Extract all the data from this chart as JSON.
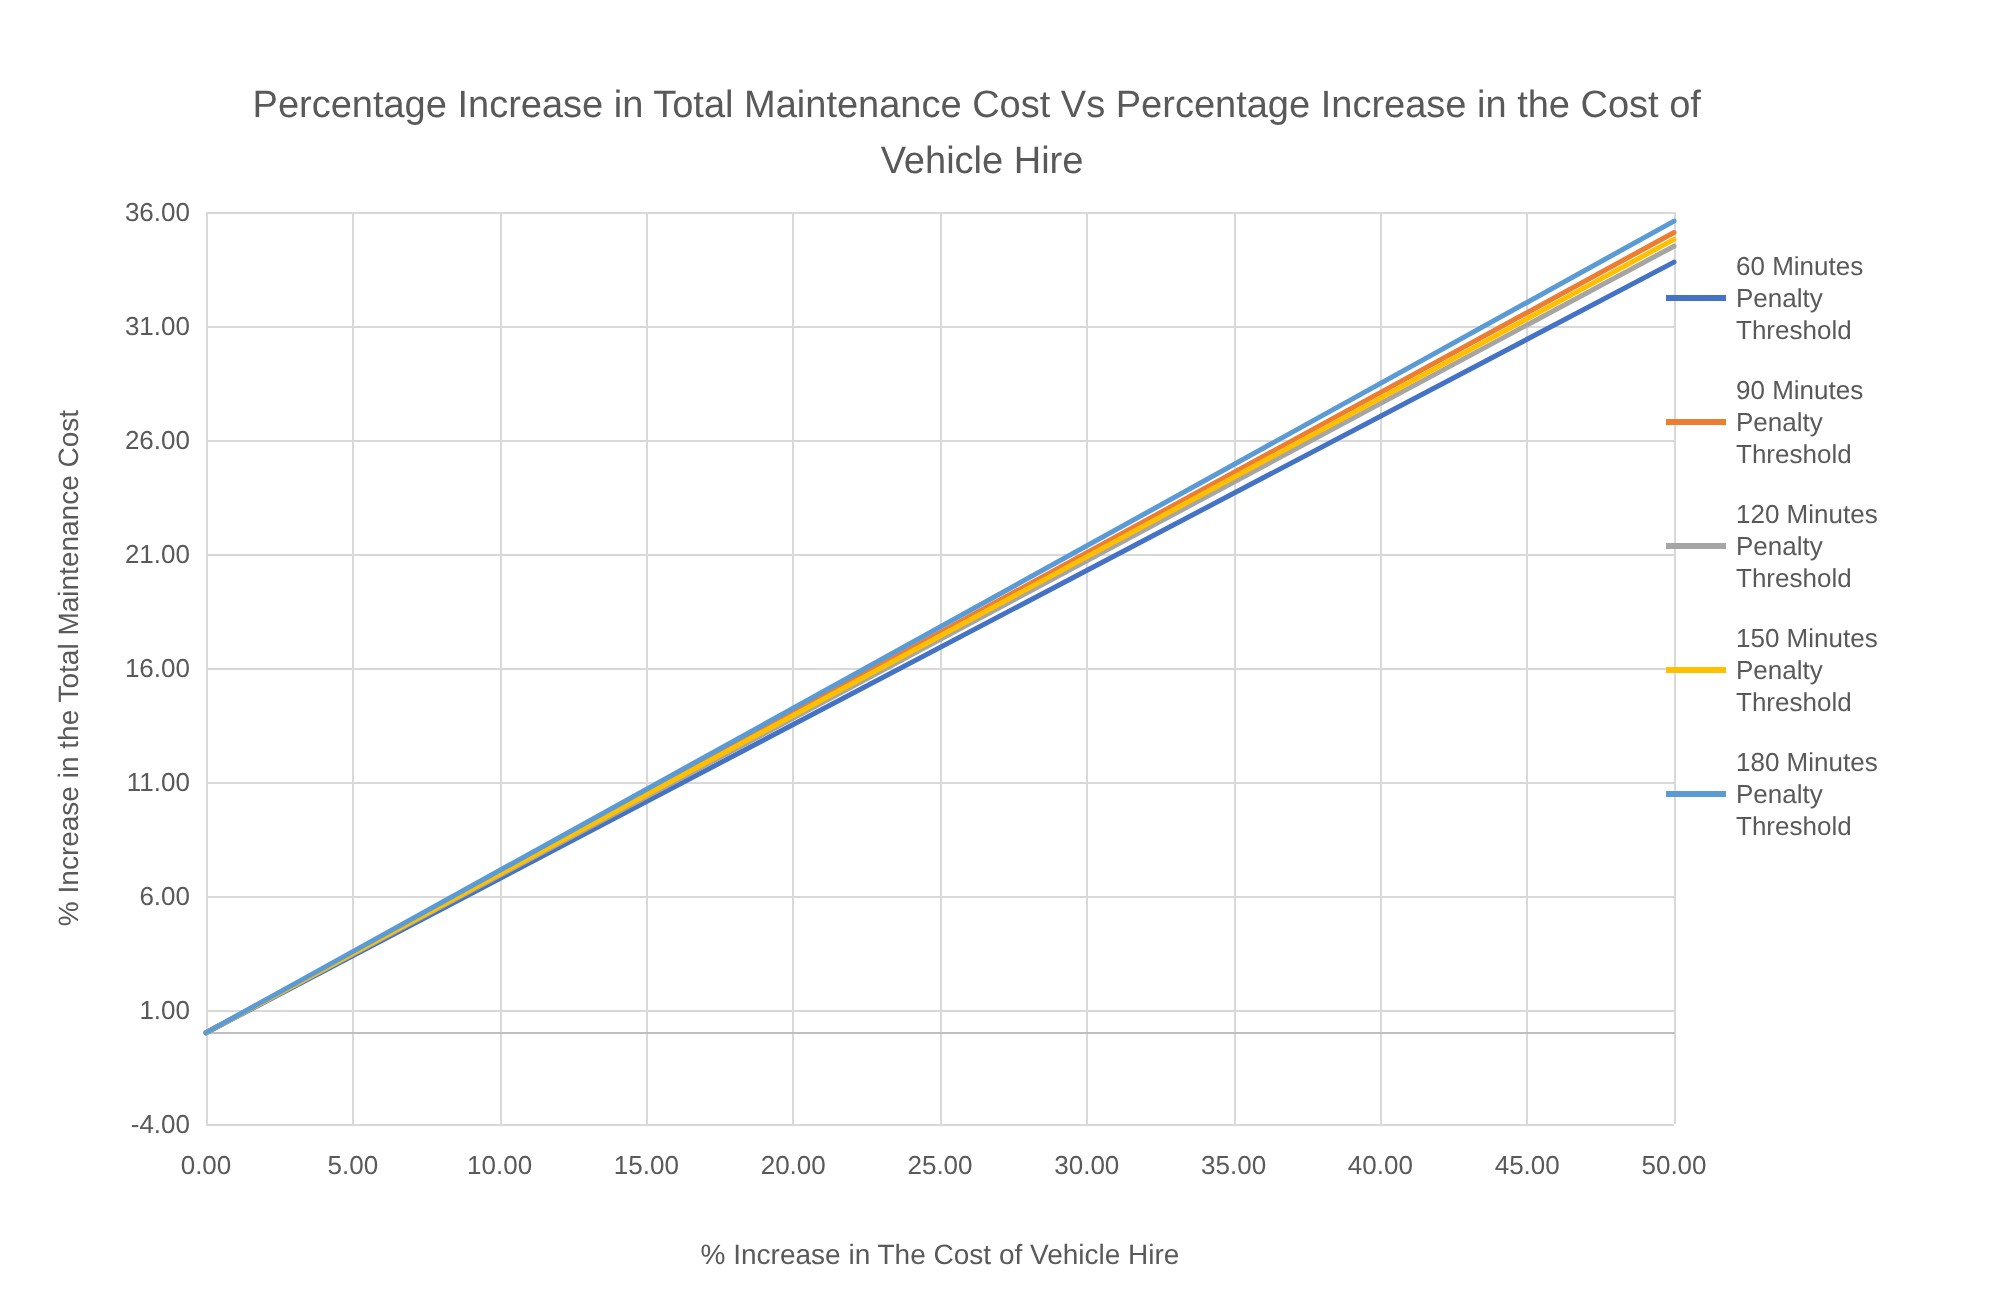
{
  "chart_data": {
    "type": "line",
    "title": "Percentage Increase in Total Maintenance Cost Vs Percentage Increase in the Cost of Vehicle Hire",
    "xlabel": "% Increase in The Cost of Vehicle Hire",
    "ylabel": "% Increase in the Total Maintenance Cost",
    "x": [
      0,
      50
    ],
    "series": [
      {
        "name": "60 Minutes Penalty Threshold",
        "color": "#4472c4",
        "values": [
          0,
          33.8
        ]
      },
      {
        "name": "90 Minutes Penalty Threshold",
        "color": "#ed7d31",
        "values": [
          0,
          35.1
        ]
      },
      {
        "name": "120 Minutes Penalty Threshold",
        "color": "#a5a5a5",
        "values": [
          0,
          34.5
        ]
      },
      {
        "name": "150 Minutes Penalty Threshold",
        "color": "#ffc000",
        "values": [
          0,
          34.8
        ]
      },
      {
        "name": "180 Minutes Penalty Threshold",
        "color": "#5b9bd5",
        "values": [
          0,
          35.6
        ]
      }
    ],
    "xlim": [
      0,
      50
    ],
    "xticks": [
      {
        "value": 0,
        "label": "0.00"
      },
      {
        "value": 5,
        "label": "5.00"
      },
      {
        "value": 10,
        "label": "10.00"
      },
      {
        "value": 15,
        "label": "15.00"
      },
      {
        "value": 20,
        "label": "20.00"
      },
      {
        "value": 25,
        "label": "25.00"
      },
      {
        "value": 30,
        "label": "30.00"
      },
      {
        "value": 35,
        "label": "35.00"
      },
      {
        "value": 40,
        "label": "40.00"
      },
      {
        "value": 45,
        "label": "45.00"
      },
      {
        "value": 50,
        "label": "50.00"
      }
    ],
    "ylim": [
      -4,
      36
    ],
    "yticks": [
      {
        "value": -4,
        "label": "-4.00"
      },
      {
        "value": 1,
        "label": "1.00"
      },
      {
        "value": 6,
        "label": "6.00"
      },
      {
        "value": 11,
        "label": "11.00"
      },
      {
        "value": 16,
        "label": "16.00"
      },
      {
        "value": 21,
        "label": "21.00"
      },
      {
        "value": 26,
        "label": "26.00"
      },
      {
        "value": 31,
        "label": "31.00"
      },
      {
        "value": 36,
        "label": "36.00"
      }
    ],
    "grid": true,
    "legend": "right",
    "marker": "none",
    "line_style": "solid"
  }
}
